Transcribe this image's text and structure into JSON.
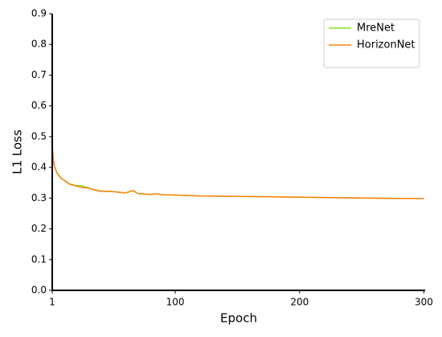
{
  "chart_data": {
    "type": "line",
    "x_label": "Epoch",
    "y_label": "L1 Loss",
    "x": [
      1,
      2,
      3,
      5,
      8,
      10,
      15,
      20,
      25,
      30,
      35,
      40,
      45,
      50,
      60,
      66,
      70,
      80,
      85,
      90,
      100,
      120,
      140,
      160,
      180,
      200,
      220,
      240,
      260,
      280,
      300
    ],
    "series": [
      {
        "name": "MreNet",
        "color": "#7fe31b",
        "values": [
          0.47,
          0.42,
          0.4,
          0.38,
          0.366,
          0.36,
          0.346,
          0.341,
          0.34,
          0.333,
          0.327,
          0.323,
          0.322,
          0.321,
          0.317,
          0.324,
          0.315,
          0.312,
          0.314,
          0.311,
          0.31,
          0.307,
          0.306,
          0.305,
          0.304,
          0.303,
          0.302,
          0.301,
          0.3,
          0.299,
          0.299
        ]
      },
      {
        "name": "HorizonNet",
        "color": "#ff7f0e",
        "values": [
          0.47,
          0.42,
          0.4,
          0.38,
          0.365,
          0.36,
          0.345,
          0.34,
          0.335,
          0.333,
          0.327,
          0.322,
          0.322,
          0.321,
          0.317,
          0.325,
          0.315,
          0.312,
          0.314,
          0.311,
          0.31,
          0.307,
          0.306,
          0.305,
          0.304,
          0.303,
          0.302,
          0.301,
          0.3,
          0.299,
          0.299
        ]
      }
    ],
    "xlim": [
      1,
      301
    ],
    "xticks": [
      1,
      100,
      200,
      300
    ],
    "ylim": [
      0,
      0.9
    ],
    "yticks": [
      {
        "value": 0,
        "label": "0.0"
      },
      0.1,
      0.2,
      0.3,
      0.4,
      0.5,
      0.6,
      0.7,
      0.8,
      0.9
    ],
    "legend": "upper-right"
  }
}
